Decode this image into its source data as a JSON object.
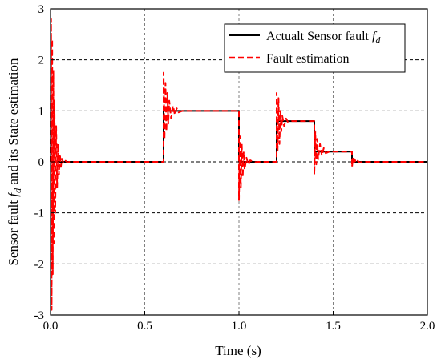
{
  "chart_data": {
    "type": "line",
    "title": "",
    "xlabel": "Time (s)",
    "ylabel_prefix": "Sensor fault ",
    "ylabel_sym": "f",
    "ylabel_sub": "d",
    "ylabel_suffix": " and its State estimation",
    "xlim": [
      0.0,
      2.0
    ],
    "ylim": [
      -3,
      3
    ],
    "xticks": [
      0.0,
      0.5,
      1.0,
      1.5,
      2.0
    ],
    "xtick_labels": [
      "0.0",
      "0.5",
      "1.0",
      "1.5",
      "2.0"
    ],
    "yticks": [
      -3,
      -2,
      -1,
      0,
      1,
      2,
      3
    ],
    "ytick_labels": [
      "-3",
      "-2",
      "-1",
      "0",
      "1",
      "2",
      "3"
    ],
    "grid": true,
    "legend_position": "top-right",
    "series": [
      {
        "name_prefix": "Actualt Sensor fault ",
        "name_sym": "f",
        "name_sub": "d",
        "color": "#000000",
        "style": "solid",
        "x": [
          0.0,
          0.6,
          0.6,
          1.0,
          1.0,
          1.2,
          1.2,
          1.4,
          1.4,
          1.6,
          1.6,
          2.0
        ],
        "y": [
          0,
          0,
          1,
          1,
          0,
          0,
          0.8,
          0.8,
          0.2,
          0.2,
          0,
          0
        ]
      },
      {
        "name": "Fault estimation",
        "color": "#ff0000",
        "style": "dashed",
        "x": [
          0.0,
          0.003,
          0.006,
          0.009,
          0.012,
          0.015,
          0.018,
          0.021,
          0.025,
          0.03,
          0.035,
          0.04,
          0.045,
          0.05,
          0.055,
          0.06,
          0.07,
          0.08,
          0.09,
          0.1,
          0.6,
          0.6,
          0.605,
          0.61,
          0.615,
          0.62,
          0.625,
          0.63,
          0.64,
          0.65,
          0.66,
          0.67,
          0.68,
          0.7,
          1.0,
          1.0,
          1.005,
          1.01,
          1.015,
          1.02,
          1.025,
          1.03,
          1.04,
          1.05,
          1.06,
          1.08,
          1.1,
          1.2,
          1.2,
          1.205,
          1.21,
          1.215,
          1.22,
          1.225,
          1.23,
          1.24,
          1.25,
          1.26,
          1.28,
          1.4,
          1.4,
          1.405,
          1.41,
          1.415,
          1.42,
          1.43,
          1.44,
          1.45,
          1.46,
          1.48,
          1.6,
          1.6,
          1.605,
          1.61,
          1.615,
          1.62,
          1.63,
          1.64,
          1.66,
          2.0
        ],
        "y": [
          0,
          2.8,
          -2.9,
          2.4,
          -2.2,
          1.8,
          -1.6,
          1.2,
          -1.0,
          0.7,
          -0.5,
          0.35,
          -0.25,
          0.15,
          -0.1,
          0.06,
          -0.03,
          0.02,
          -0.01,
          0,
          0,
          1.75,
          0.45,
          1.55,
          0.6,
          1.35,
          0.75,
          1.2,
          0.85,
          1.1,
          0.92,
          1.05,
          0.97,
          1.0,
          1.0,
          -0.75,
          0.5,
          -0.5,
          0.35,
          -0.3,
          0.2,
          -0.15,
          0.08,
          -0.06,
          0.03,
          -0.01,
          0,
          0,
          1.35,
          0.2,
          1.25,
          0.35,
          1.0,
          0.6,
          0.9,
          0.7,
          0.85,
          0.78,
          0.8,
          0.8,
          -0.25,
          0.6,
          -0.05,
          0.45,
          0.05,
          0.35,
          0.12,
          0.27,
          0.17,
          0.2,
          0.2,
          -0.1,
          0.08,
          -0.05,
          0.05,
          -0.02,
          0.02,
          -0.01,
          0,
          0
        ]
      }
    ]
  }
}
